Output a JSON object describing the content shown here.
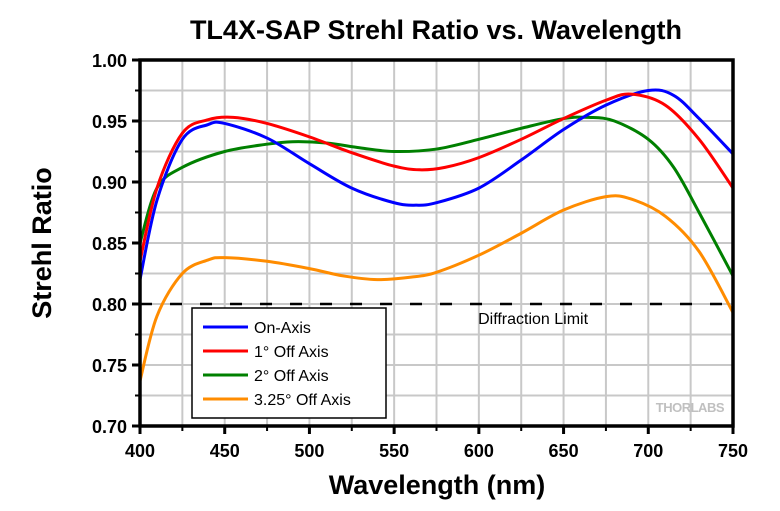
{
  "chart_data": {
    "type": "line",
    "title": "TL4X-SAP Strehl Ratio vs. Wavelength",
    "xlabel": "Wavelength (nm)",
    "ylabel": "Strehl Ratio",
    "xlim": [
      400,
      750
    ],
    "ylim": [
      0.7,
      1.0
    ],
    "xticks": [
      400,
      450,
      500,
      550,
      600,
      650,
      700,
      750
    ],
    "xtick_labels": [
      "400",
      "450",
      "500",
      "550",
      "600",
      "650",
      "700",
      "750"
    ],
    "yticks": [
      0.7,
      0.75,
      0.8,
      0.85,
      0.9,
      0.95,
      1.0
    ],
    "ytick_labels": [
      "0.70",
      "0.75",
      "0.80",
      "0.85",
      "0.90",
      "0.95",
      "1.00"
    ],
    "grid": true,
    "legend_position": "bottom-left",
    "series": [
      {
        "name": "On-Axis",
        "color": "#0000ff",
        "x": [
          400,
          410,
          425,
          440,
          450,
          475,
          500,
          525,
          550,
          563,
          575,
          600,
          625,
          650,
          675,
          700,
          715,
          730,
          750
        ],
        "y": [
          0.82,
          0.885,
          0.935,
          0.947,
          0.948,
          0.936,
          0.915,
          0.895,
          0.883,
          0.881,
          0.883,
          0.895,
          0.918,
          0.943,
          0.963,
          0.975,
          0.971,
          0.952,
          0.923
        ]
      },
      {
        "name": "1° Off Axis",
        "color": "#ff0000",
        "x": [
          400,
          410,
          425,
          440,
          455,
          475,
          500,
          525,
          550,
          565,
          580,
          600,
          625,
          650,
          675,
          690,
          710,
          730,
          750
        ],
        "y": [
          0.835,
          0.895,
          0.94,
          0.951,
          0.953,
          0.948,
          0.937,
          0.924,
          0.913,
          0.91,
          0.912,
          0.92,
          0.935,
          0.952,
          0.967,
          0.972,
          0.963,
          0.935,
          0.895
        ]
      },
      {
        "name": "2° Off Axis",
        "color": "#008000",
        "x": [
          400,
          410,
          425,
          450,
          475,
          490,
          510,
          530,
          550,
          575,
          600,
          625,
          650,
          665,
          680,
          700,
          715,
          730,
          750
        ],
        "y": [
          0.85,
          0.895,
          0.912,
          0.925,
          0.931,
          0.933,
          0.932,
          0.928,
          0.925,
          0.927,
          0.935,
          0.944,
          0.952,
          0.953,
          0.95,
          0.935,
          0.912,
          0.875,
          0.823
        ]
      },
      {
        "name": "3.25° Off Axis",
        "color": "#ff8c00",
        "x": [
          400,
          410,
          425,
          440,
          450,
          475,
          500,
          520,
          540,
          560,
          575,
          600,
          625,
          650,
          675,
          690,
          710,
          730,
          750
        ],
        "y": [
          0.737,
          0.79,
          0.825,
          0.836,
          0.838,
          0.835,
          0.829,
          0.823,
          0.82,
          0.822,
          0.826,
          0.84,
          0.858,
          0.877,
          0.888,
          0.886,
          0.872,
          0.843,
          0.793
        ]
      }
    ],
    "reference_lines": [
      {
        "label": "Diffraction Limit",
        "y": 0.8,
        "style": "dashed",
        "color": "#000000"
      }
    ],
    "watermark": "THORLABS"
  }
}
